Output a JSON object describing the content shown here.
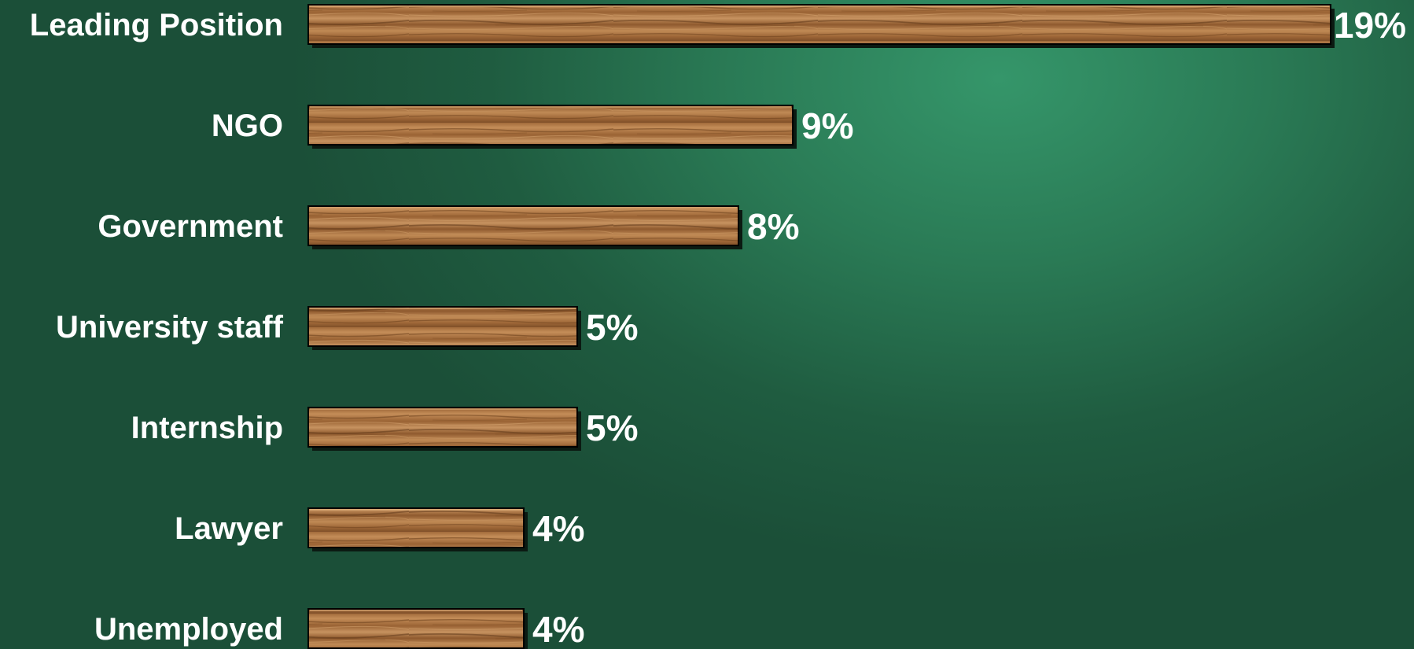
{
  "chart_data": {
    "type": "bar",
    "orientation": "horizontal",
    "categories": [
      "Leading Position",
      "NGO",
      "Government",
      "University staff",
      "Internship",
      "Lawyer",
      "Unemployed"
    ],
    "values": [
      19,
      9,
      8,
      5,
      5,
      4,
      4
    ],
    "value_labels": [
      "19%",
      "9%",
      "8%",
      "5%",
      "5%",
      "4%",
      "4%"
    ],
    "unit": "%",
    "xlim": [
      0,
      19
    ],
    "grid": false,
    "legend": "none",
    "title": "",
    "xlabel": "",
    "ylabel": ""
  },
  "colors": {
    "bar_wood_light": "#c08a55",
    "bar_wood_dark": "#8a5a30",
    "bar_outline": "#000000",
    "bar_shadow": "#0b1a12",
    "label_text": "#ffffff",
    "background_light": "#35966a",
    "background_dark": "#1b4f38"
  }
}
